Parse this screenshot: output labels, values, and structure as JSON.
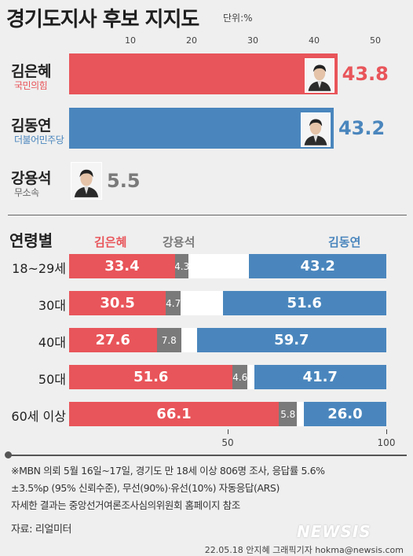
{
  "title": "경기도지사 후보 지지도",
  "unit": "단위:%",
  "colors": {
    "red": "#e8555a",
    "blue": "#4a86bd",
    "gray": "#7a7a7a",
    "white": "#ffffff"
  },
  "chart_data": [
    {
      "type": "bar",
      "orientation": "horizontal",
      "title": "경기도지사 후보 지지도",
      "unit": "단위:%",
      "x_ticks": [
        "10",
        "20",
        "30",
        "40",
        "50"
      ],
      "xlim": [
        0,
        50
      ],
      "candidates": [
        {
          "name": "김은혜",
          "party": "국민의힘",
          "value": 43.8,
          "label": "43.8",
          "color": "#e8555a"
        },
        {
          "name": "김동연",
          "party": "더불어민주당",
          "value": 43.2,
          "label": "43.2",
          "color": "#4a86bd"
        },
        {
          "name": "강용석",
          "party": "무소속",
          "value": 5.5,
          "label": "5.5",
          "color": "#7a7a7a"
        }
      ]
    },
    {
      "type": "bar",
      "orientation": "horizontal",
      "stacked": true,
      "title": "연령별",
      "series_names": [
        "김은혜",
        "강용석",
        "김동연"
      ],
      "x_ticks": [
        "50",
        "100"
      ],
      "xlim": [
        0,
        100
      ],
      "rows": [
        {
          "age": "18~29세",
          "values": [
            33.4,
            4.3,
            43.2
          ],
          "labels": [
            "33.4",
            "4.3",
            "43.2"
          ]
        },
        {
          "age": "30대",
          "values": [
            30.5,
            4.7,
            51.6
          ],
          "labels": [
            "30.5",
            "4.7",
            "51.6"
          ]
        },
        {
          "age": "40대",
          "values": [
            27.6,
            7.8,
            59.7
          ],
          "labels": [
            "27.6",
            "7.8",
            "59.7"
          ]
        },
        {
          "age": "50대",
          "values": [
            51.6,
            4.6,
            41.7
          ],
          "labels": [
            "51.6",
            "4.6",
            "41.7"
          ]
        },
        {
          "age": "60세 이상",
          "values": [
            66.1,
            5.8,
            26.0
          ],
          "labels": [
            "66.1",
            "5.8",
            "26.0"
          ]
        }
      ]
    }
  ],
  "notes": [
    "※MBN 의뢰 5월 16일~17일, 경기도 만 18세 이상 806명 조사, 응답률 5.6%",
    "±3.5%p (95% 신뢰수준), 무선(90%)·유선(10%) 자동응답(ARS)",
    "자세한 결과는 중앙선거여론조사심의위원회 홈페이지 참조"
  ],
  "source": "자료: 리얼미터",
  "credit": "22.05.18 안지혜 그래픽기자 hokma@newsis.com",
  "logo": "NEWSIS"
}
